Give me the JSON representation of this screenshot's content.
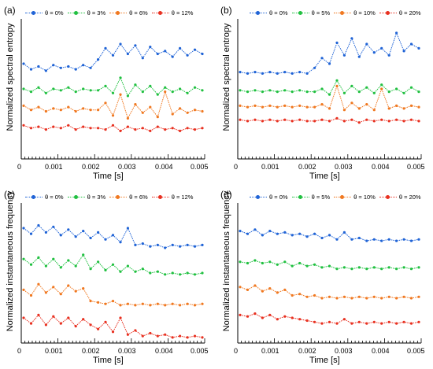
{
  "colors": {
    "blue": "#1f63d6",
    "green": "#20c040",
    "orange": "#f07820",
    "red": "#e83020"
  },
  "panels": [
    {
      "label": "(a)",
      "ylabel": "Normalized spectral entropy",
      "xlabel": "Time [s]",
      "legend": [
        "θ = 0%",
        "θ = 3%",
        "θ = 6%",
        "θ = 12%"
      ]
    },
    {
      "label": "(b)",
      "ylabel": "Normalized spectral entropy",
      "xlabel": "Time [s]",
      "legend": [
        "θ = 0%",
        "θ = 5%",
        "θ = 10%",
        "θ = 20%"
      ]
    },
    {
      "label": "(c)",
      "ylabel": "Normalized instantaneous frequency",
      "xlabel": "Time [s]",
      "legend": [
        "θ = 0%",
        "θ = 3%",
        "θ = 6%",
        "θ = 12%"
      ]
    },
    {
      "label": "(d)",
      "ylabel": "Normalized instantaneous frequency",
      "xlabel": "Time [s]",
      "legend": [
        "θ = 0%",
        "θ = 5%",
        "θ = 10%",
        "θ = 20%"
      ]
    }
  ],
  "chart_data": [
    {
      "type": "line",
      "xlim": [
        0,
        0.005
      ],
      "xticks": [
        "0",
        "0.001",
        "0.002",
        "0.003",
        "0.004",
        "0.005"
      ],
      "xlabel": "Time [s]",
      "ylabel": "Normalized spectral entropy",
      "legend_position": "top",
      "series": [
        {
          "name": "θ = 0%",
          "y": [
            0.68,
            0.64,
            0.66,
            0.63,
            0.67,
            0.65,
            0.66,
            0.64,
            0.67,
            0.65,
            0.71,
            0.79,
            0.74,
            0.82,
            0.75,
            0.81,
            0.72,
            0.8,
            0.75,
            0.77,
            0.73,
            0.79,
            0.74,
            0.78,
            0.75
          ]
        },
        {
          "name": "θ = 3%",
          "y": [
            0.5,
            0.48,
            0.51,
            0.47,
            0.5,
            0.49,
            0.51,
            0.48,
            0.5,
            0.49,
            0.49,
            0.52,
            0.47,
            0.58,
            0.45,
            0.53,
            0.48,
            0.52,
            0.46,
            0.51,
            0.48,
            0.5,
            0.47,
            0.51,
            0.49
          ]
        },
        {
          "name": "θ = 6%",
          "y": [
            0.38,
            0.35,
            0.37,
            0.34,
            0.36,
            0.35,
            0.37,
            0.34,
            0.36,
            0.35,
            0.35,
            0.4,
            0.31,
            0.46,
            0.29,
            0.39,
            0.33,
            0.37,
            0.3,
            0.48,
            0.32,
            0.36,
            0.33,
            0.35,
            0.34
          ]
        },
        {
          "name": "θ = 12%",
          "y": [
            0.24,
            0.22,
            0.23,
            0.21,
            0.23,
            0.22,
            0.24,
            0.21,
            0.23,
            0.22,
            0.22,
            0.21,
            0.24,
            0.2,
            0.23,
            0.21,
            0.22,
            0.2,
            0.23,
            0.21,
            0.22,
            0.2,
            0.22,
            0.21,
            0.22
          ]
        }
      ]
    },
    {
      "type": "line",
      "xlim": [
        0,
        0.005
      ],
      "xticks": [
        "0",
        "0.001",
        "0.002",
        "0.003",
        "0.004",
        "0.005"
      ],
      "xlabel": "Time [s]",
      "ylabel": "Normalized spectral entropy",
      "legend_position": "top",
      "series": [
        {
          "name": "θ = 0%",
          "y": [
            0.62,
            0.61,
            0.62,
            0.61,
            0.62,
            0.61,
            0.62,
            0.61,
            0.62,
            0.61,
            0.65,
            0.72,
            0.68,
            0.83,
            0.74,
            0.86,
            0.73,
            0.82,
            0.76,
            0.79,
            0.74,
            0.9,
            0.77,
            0.82,
            0.79
          ]
        },
        {
          "name": "θ = 5%",
          "y": [
            0.49,
            0.48,
            0.49,
            0.48,
            0.49,
            0.48,
            0.49,
            0.48,
            0.49,
            0.48,
            0.48,
            0.5,
            0.46,
            0.56,
            0.47,
            0.52,
            0.48,
            0.51,
            0.47,
            0.53,
            0.48,
            0.5,
            0.47,
            0.51,
            0.48
          ]
        },
        {
          "name": "θ = 10%",
          "y": [
            0.38,
            0.37,
            0.38,
            0.37,
            0.38,
            0.37,
            0.38,
            0.37,
            0.38,
            0.37,
            0.37,
            0.39,
            0.36,
            0.52,
            0.35,
            0.4,
            0.36,
            0.39,
            0.35,
            0.5,
            0.36,
            0.38,
            0.36,
            0.38,
            0.37
          ]
        },
        {
          "name": "θ = 20%",
          "y": [
            0.28,
            0.27,
            0.28,
            0.27,
            0.28,
            0.27,
            0.28,
            0.27,
            0.28,
            0.27,
            0.27,
            0.28,
            0.27,
            0.29,
            0.27,
            0.28,
            0.26,
            0.28,
            0.27,
            0.28,
            0.27,
            0.28,
            0.27,
            0.28,
            0.27
          ]
        }
      ]
    },
    {
      "type": "line",
      "xlim": [
        0,
        0.005
      ],
      "xticks": [
        "0",
        "0.001",
        "0.002",
        "0.003",
        "0.004",
        "0.005"
      ],
      "xlabel": "Time [s]",
      "ylabel": "Normalized instantaneous frequency",
      "legend_position": "top",
      "series": [
        {
          "name": "θ = 0%",
          "y": [
            0.82,
            0.78,
            0.84,
            0.79,
            0.83,
            0.77,
            0.81,
            0.76,
            0.8,
            0.75,
            0.79,
            0.74,
            0.77,
            0.72,
            0.82,
            0.7,
            0.71,
            0.69,
            0.7,
            0.68,
            0.7,
            0.69,
            0.7,
            0.69,
            0.7
          ]
        },
        {
          "name": "θ = 3%",
          "y": [
            0.6,
            0.56,
            0.61,
            0.55,
            0.6,
            0.54,
            0.59,
            0.55,
            0.63,
            0.53,
            0.58,
            0.52,
            0.56,
            0.51,
            0.55,
            0.51,
            0.53,
            0.5,
            0.51,
            0.49,
            0.5,
            0.49,
            0.5,
            0.49,
            0.5
          ]
        },
        {
          "name": "θ = 6%",
          "y": [
            0.38,
            0.34,
            0.42,
            0.36,
            0.4,
            0.35,
            0.41,
            0.37,
            0.39,
            0.3,
            0.29,
            0.28,
            0.3,
            0.27,
            0.28,
            0.27,
            0.28,
            0.27,
            0.28,
            0.27,
            0.28,
            0.27,
            0.28,
            0.27,
            0.28
          ]
        },
        {
          "name": "θ = 12%",
          "y": [
            0.18,
            0.14,
            0.2,
            0.13,
            0.19,
            0.14,
            0.18,
            0.12,
            0.17,
            0.13,
            0.1,
            0.15,
            0.08,
            0.18,
            0.06,
            0.09,
            0.05,
            0.07,
            0.05,
            0.06,
            0.04,
            0.05,
            0.04,
            0.05,
            0.04
          ]
        }
      ]
    },
    {
      "type": "line",
      "xlim": [
        0,
        0.005
      ],
      "xticks": [
        "0",
        "0.001",
        "0.002",
        "0.003",
        "0.004",
        "0.005"
      ],
      "xlabel": "Time [s]",
      "ylabel": "Normalized instantaneous frequency",
      "legend_position": "top",
      "series": [
        {
          "name": "θ = 0%",
          "y": [
            0.8,
            0.78,
            0.81,
            0.77,
            0.8,
            0.78,
            0.79,
            0.77,
            0.78,
            0.76,
            0.78,
            0.75,
            0.77,
            0.74,
            0.79,
            0.74,
            0.75,
            0.73,
            0.74,
            0.73,
            0.74,
            0.73,
            0.74,
            0.73,
            0.74
          ]
        },
        {
          "name": "θ = 5%",
          "y": [
            0.58,
            0.57,
            0.59,
            0.57,
            0.58,
            0.56,
            0.58,
            0.55,
            0.57,
            0.55,
            0.56,
            0.54,
            0.55,
            0.53,
            0.54,
            0.53,
            0.54,
            0.53,
            0.54,
            0.53,
            0.54,
            0.53,
            0.54,
            0.53,
            0.54
          ]
        },
        {
          "name": "θ = 10%",
          "y": [
            0.4,
            0.38,
            0.41,
            0.37,
            0.39,
            0.36,
            0.38,
            0.34,
            0.35,
            0.33,
            0.34,
            0.32,
            0.33,
            0.32,
            0.33,
            0.32,
            0.33,
            0.32,
            0.33,
            0.32,
            0.33,
            0.32,
            0.33,
            0.32,
            0.33
          ]
        },
        {
          "name": "θ = 20%",
          "y": [
            0.2,
            0.19,
            0.21,
            0.18,
            0.2,
            0.17,
            0.19,
            0.18,
            0.17,
            0.16,
            0.15,
            0.14,
            0.15,
            0.14,
            0.17,
            0.14,
            0.15,
            0.14,
            0.15,
            0.14,
            0.15,
            0.14,
            0.15,
            0.14,
            0.15
          ]
        }
      ]
    }
  ]
}
